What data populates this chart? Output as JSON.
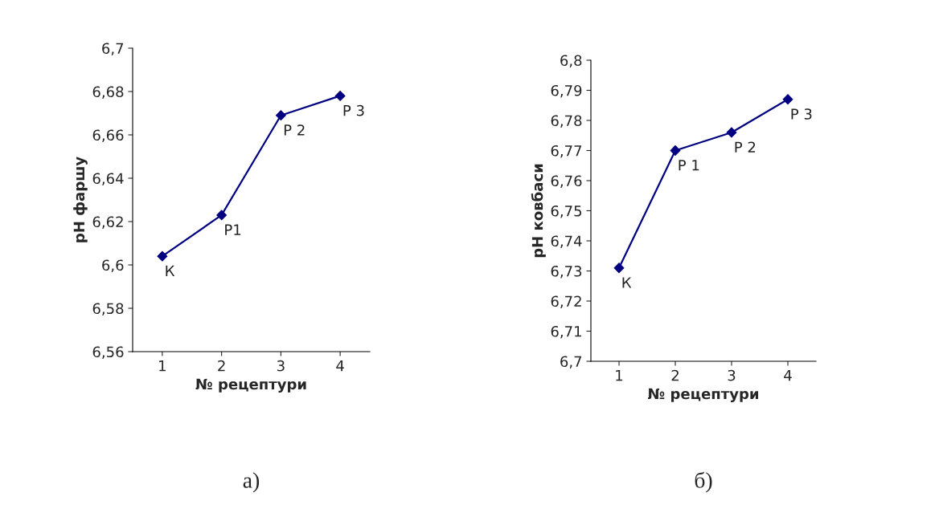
{
  "chart_data": [
    {
      "type": "line",
      "xlabel": "№ рецептури",
      "ylabel": "pH фаршу",
      "categories": [
        "1",
        "2",
        "3",
        "4"
      ],
      "series": [
        {
          "color": "#000080",
          "values": [
            6.604,
            6.623,
            6.669,
            6.678
          ]
        }
      ],
      "marker": "diamond",
      "line_style": "solid",
      "grid": false,
      "legend": false,
      "ylim": [
        6.56,
        6.7
      ],
      "yticks": [
        {
          "value": 6.56,
          "label": "6,56"
        },
        {
          "value": 6.58,
          "label": "6,58"
        },
        {
          "value": 6.6,
          "label": "6,6"
        },
        {
          "value": 6.62,
          "label": "6,62"
        },
        {
          "value": 6.64,
          "label": "6,64"
        },
        {
          "value": 6.66,
          "label": "6,66"
        },
        {
          "value": 6.68,
          "label": "6,68"
        },
        {
          "value": 6.7,
          "label": "6,7"
        }
      ],
      "annotations": [
        {
          "text": "К",
          "x": "1",
          "y": 6.604
        },
        {
          "text": "Р1",
          "x": "2",
          "y": 6.623
        },
        {
          "text": "Р 2",
          "x": "3",
          "y": 6.669
        },
        {
          "text": "Р 3",
          "x": "4",
          "y": 6.678
        },
        "а)"
      ]
    },
    {
      "type": "line",
      "xlabel": "№ рецептури",
      "ylabel": "pH ковбаси",
      "categories": [
        "1",
        "2",
        "3",
        "4"
      ],
      "series": [
        {
          "color": "#000080",
          "values": [
            6.731,
            6.77,
            6.776,
            6.787
          ]
        }
      ],
      "marker": "diamond",
      "line_style": "solid",
      "grid": false,
      "legend": false,
      "ylim": [
        6.7,
        6.8
      ],
      "yticks": [
        {
          "value": 6.7,
          "label": "6,7"
        },
        {
          "value": 6.71,
          "label": "6,71"
        },
        {
          "value": 6.72,
          "label": "6,72"
        },
        {
          "value": 6.73,
          "label": "6,73"
        },
        {
          "value": 6.74,
          "label": "6,74"
        },
        {
          "value": 6.75,
          "label": "6,75"
        },
        {
          "value": 6.76,
          "label": "6,76"
        },
        {
          "value": 6.77,
          "label": "6,77"
        },
        {
          "value": 6.78,
          "label": "6,78"
        },
        {
          "value": 6.79,
          "label": "6,79"
        },
        {
          "value": 6.8,
          "label": "6,8"
        }
      ],
      "annotations": [
        {
          "text": "К",
          "x": "1",
          "y": 6.731
        },
        {
          "text": "Р 1",
          "x": "2",
          "y": 6.77
        },
        {
          "text": "Р 2",
          "x": "3",
          "y": 6.776
        },
        {
          "text": "Р 3",
          "x": "4",
          "y": 6.787
        },
        "б)"
      ]
    }
  ]
}
